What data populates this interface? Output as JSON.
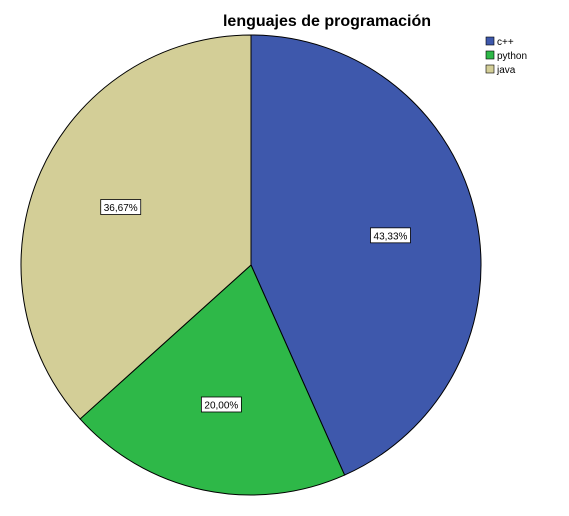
{
  "chart_data": {
    "type": "pie",
    "title": "lenguajes de programación",
    "legend_position": "top-right",
    "start_angle_deg": 0,
    "direction": "clockwise",
    "slices": [
      {
        "label": "c++",
        "value": 43.33,
        "display": "43,33%",
        "color": "#3e58ac"
      },
      {
        "label": "python",
        "value": 20.0,
        "display": "20,00%",
        "color": "#2eb848"
      },
      {
        "label": "java",
        "value": 36.67,
        "display": "36,67%",
        "color": "#d3ce97"
      }
    ]
  }
}
